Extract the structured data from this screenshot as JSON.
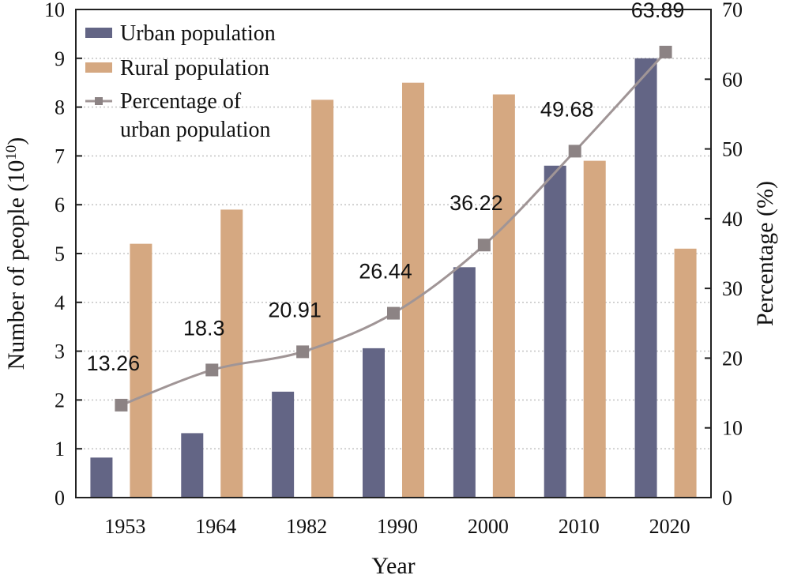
{
  "chart_data": {
    "type": "bar",
    "categories": [
      "1953",
      "1964",
      "1982",
      "1990",
      "2000",
      "2010",
      "2020"
    ],
    "series": [
      {
        "name": "Urban population",
        "type": "bar",
        "axis": "left",
        "color": "#636585",
        "values": [
          0.82,
          1.32,
          2.17,
          3.06,
          4.72,
          6.8,
          9.0
        ]
      },
      {
        "name": "Rural population",
        "type": "bar",
        "axis": "left",
        "color": "#d5a881",
        "values": [
          5.2,
          5.9,
          8.15,
          8.5,
          8.26,
          6.9,
          5.1
        ]
      },
      {
        "name": "Percentage of urban population",
        "name_lines": [
          "Percentage of",
          "urban population"
        ],
        "type": "line",
        "axis": "right",
        "color": "#8c8384",
        "marker": "square",
        "values": [
          13.26,
          18.3,
          20.91,
          26.44,
          36.22,
          49.68,
          63.89
        ],
        "labels": [
          "13.26",
          "18.3",
          "20.91",
          "26.44",
          "36.22",
          "49.68",
          "63.89"
        ]
      }
    ],
    "xlabel": "Year",
    "ylabel_left": "Number of people (10",
    "ylabel_left_sup": "10",
    "ylabel_left_close": ")",
    "ylabel_right": "Percentage (%)",
    "ylim_left": [
      0,
      10
    ],
    "ylim_right": [
      0,
      70
    ],
    "yticks_left": [
      "0",
      "1",
      "2",
      "3",
      "4",
      "5",
      "6",
      "7",
      "8",
      "9",
      "10"
    ],
    "yticks_right": [
      "0",
      "10",
      "20",
      "30",
      "40",
      "50",
      "60",
      "70"
    ],
    "grid": "horizontal dotted",
    "legend": "top-left"
  }
}
